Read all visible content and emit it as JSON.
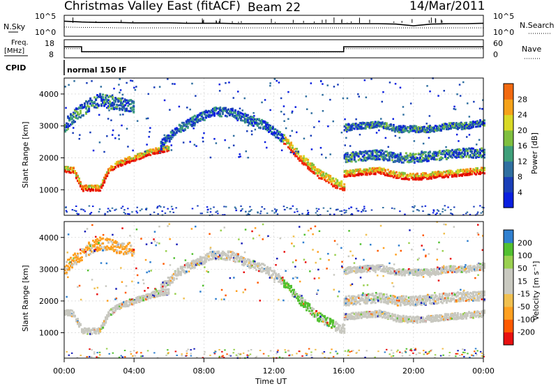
{
  "header": {
    "title": "Christmas Valley East (fitACF)",
    "beam": "Beam 22",
    "date": "14/Mar/2011"
  },
  "colors": {
    "power_scale": [
      "#0a1fe0",
      "#1a3fb8",
      "#2f6fa0",
      "#3f9f7a",
      "#7fbf3f",
      "#d9d926",
      "#f5a21a",
      "#f26a10",
      "#f02a0a",
      "#e00000"
    ],
    "velocity_scale": [
      "#e81010",
      "#ff5a00",
      "#ffa020",
      "#f0c050",
      "#c9c9c0",
      "#c9c9c0",
      "#9ad050",
      "#52c030",
      "#3080d0",
      "#1a20b8"
    ],
    "grey": "#c8c8c0"
  },
  "chart_data": [
    {
      "type": "line",
      "panel": "noise",
      "left_label": "N.Sky",
      "right_label": "N.Search",
      "left_ticks": [
        "10^5",
        "10^0"
      ],
      "right_ticks": [
        "10^5",
        "10^0"
      ],
      "series": [
        {
          "name": "N.Sky",
          "style": "solid"
        },
        {
          "name": "N.Search",
          "style": "dotted"
        }
      ],
      "x": [
        0,
        1,
        2,
        3,
        4,
        5,
        6,
        7,
        8,
        9,
        10,
        11,
        12,
        13,
        14,
        15,
        16,
        17,
        18,
        19,
        20,
        21,
        22,
        23,
        24
      ],
      "sky": [
        3.6,
        3.4,
        3.3,
        3.3,
        3.2,
        3.2,
        3.2,
        3.1,
        3.1,
        3.1,
        3.0,
        3.0,
        3.0,
        3.0,
        3.0,
        3.0,
        3.0,
        3.0,
        3.0,
        2.9,
        2.5,
        2.9,
        3.0,
        3.0,
        3.1
      ],
      "search": [
        2.2,
        2.1,
        2.1,
        2.0,
        2.0,
        2.0,
        2.0,
        2.0,
        2.0,
        2.0,
        2.0,
        2.0,
        2.0,
        2.0,
        2.0,
        2.0,
        2.0,
        2.0,
        2.0,
        2.0,
        2.0,
        2.0,
        2.0,
        2.0,
        2.0
      ]
    },
    {
      "type": "line",
      "panel": "frequency",
      "left_label_1": "Freq.",
      "left_label_2": "[MHz]",
      "right_label": "Nave",
      "left_ticks": [
        18,
        8
      ],
      "right_ticks": [
        60,
        0
      ],
      "series": [
        {
          "name": "Freq.",
          "style": "solid"
        },
        {
          "name": "Nave",
          "style": "dotted"
        }
      ],
      "freq": [
        {
          "x": 0,
          "y": 14.6
        },
        {
          "x": 1.0,
          "y": 14.6
        },
        {
          "x": 1.0,
          "y": 10.6
        },
        {
          "x": 16.0,
          "y": 10.6
        },
        {
          "x": 16.0,
          "y": 14.6
        },
        {
          "x": 24,
          "y": 14.6
        }
      ],
      "nave": [
        {
          "x": 0,
          "y": 33
        },
        {
          "x": 1.0,
          "y": 33
        },
        {
          "x": 1.0,
          "y": 21
        },
        {
          "x": 16.0,
          "y": 21
        },
        {
          "x": 16.0,
          "y": 33
        },
        {
          "x": 24,
          "y": 33
        }
      ]
    },
    {
      "type": "heatmap",
      "panel": "cpid",
      "label": "CPID",
      "text": "normal 150 IF"
    },
    {
      "type": "heatmap",
      "panel": "power",
      "ylabel": "Slant Range [km]",
      "colorbar_label": "Power [dB]",
      "colorbar_ticks": [
        4,
        8,
        12,
        16,
        20,
        24,
        28
      ],
      "ylim": [
        200,
        4500
      ],
      "yticks": [
        1000,
        2000,
        3000,
        4000
      ],
      "bands": [
        {
          "name": "e-band",
          "path": [
            [
              0,
              1650
            ],
            [
              0.5,
              1600
            ],
            [
              1,
              1050
            ],
            [
              2,
              1050
            ],
            [
              2.5,
              1600
            ],
            [
              3,
              1800
            ],
            [
              4,
              2000
            ],
            [
              5,
              2200
            ],
            [
              6,
              2300
            ]
          ],
          "width": 180
        },
        {
          "name": "arc",
          "path": [
            [
              5.5,
              2400
            ],
            [
              6.5,
              2900
            ],
            [
              7.5,
              3200
            ],
            [
              8.5,
              3450
            ],
            [
              9.5,
              3420
            ],
            [
              10.5,
              3200
            ],
            [
              11.5,
              3000
            ],
            [
              12.5,
              2600
            ],
            [
              13.5,
              2000
            ],
            [
              14.5,
              1500
            ],
            [
              15.5,
              1200
            ],
            [
              16,
              1100
            ]
          ],
          "width": 280
        },
        {
          "name": "upper-early",
          "path": [
            [
              0,
              3000
            ],
            [
              0.5,
              3300
            ],
            [
              1,
              3500
            ],
            [
              1.5,
              3700
            ],
            [
              2,
              3800
            ],
            [
              3,
              3700
            ],
            [
              4,
              3600
            ]
          ],
          "width": 400
        },
        {
          "name": "late-f",
          "path": [
            [
              16,
              1500
            ],
            [
              17,
              1550
            ],
            [
              18,
              1600
            ],
            [
              19,
              1450
            ],
            [
              20,
              1400
            ],
            [
              21,
              1450
            ],
            [
              22,
              1500
            ],
            [
              23,
              1550
            ],
            [
              24,
              1600
            ]
          ],
          "width": 200
        },
        {
          "name": "late-mid",
          "path": [
            [
              16,
              2000
            ],
            [
              17,
              2050
            ],
            [
              18,
              2100
            ],
            [
              19,
              2000
            ],
            [
              20,
              2000
            ],
            [
              21,
              2050
            ],
            [
              22,
              2100
            ],
            [
              23,
              2150
            ],
            [
              24,
              2150
            ]
          ],
          "width": 300
        },
        {
          "name": "late-upper",
          "path": [
            [
              16,
              2950
            ],
            [
              17,
              3000
            ],
            [
              18,
              3050
            ],
            [
              19,
              2900
            ],
            [
              20,
              2900
            ],
            [
              21,
              2900
            ],
            [
              22,
              3000
            ],
            [
              23,
              3000
            ],
            [
              24,
              3100
            ]
          ],
          "width": 200
        }
      ]
    },
    {
      "type": "heatmap",
      "panel": "velocity",
      "ylabel": "Slant Range [km]",
      "colorbar_label": "Velocity [m s⁻¹]",
      "colorbar_ticks": [
        200,
        100,
        50,
        15,
        -15,
        -50,
        -100,
        -200
      ],
      "ylim": [
        200,
        4500
      ],
      "yticks": [
        1000,
        2000,
        3000,
        4000
      ],
      "xlabel": "Time UT",
      "xticks": [
        "00:00",
        "04:00",
        "08:00",
        "12:00",
        "16:00",
        "20:00",
        "00:00"
      ],
      "xlim": [
        0,
        24
      ]
    }
  ]
}
